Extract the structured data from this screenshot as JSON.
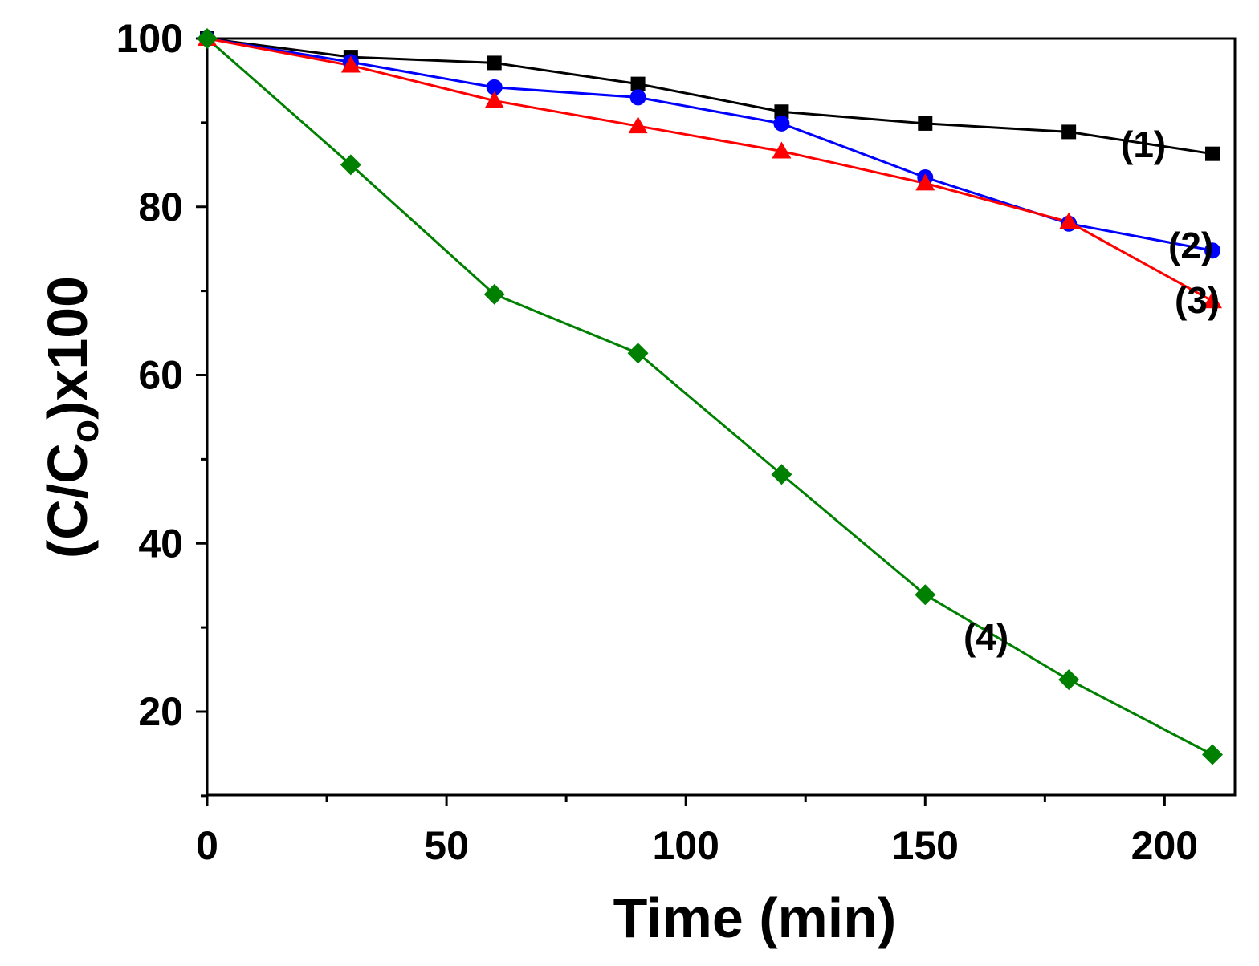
{
  "chart_data": {
    "type": "line",
    "title": "",
    "xlabel": "Time (min)",
    "ylabel": "(C/C",
    "ylabel_subscript": "o",
    "ylabel_suffix": ")x100",
    "xlim": [
      0,
      215
    ],
    "ylim": [
      10,
      100
    ],
    "xticks": [
      0,
      50,
      100,
      150,
      200
    ],
    "xtick_labels": [
      "0",
      "50",
      "100",
      "150",
      "200"
    ],
    "yticks": [
      20,
      40,
      60,
      80,
      100
    ],
    "ytick_labels": [
      "20",
      "40",
      "60",
      "80",
      "100"
    ],
    "grid": false,
    "x": [
      0,
      30,
      60,
      90,
      120,
      150,
      180,
      210
    ],
    "series": [
      {
        "name": "(1)",
        "label": "(1)",
        "color": "#000000",
        "marker": "square",
        "values": [
          100,
          97.8,
          97.1,
          94.6,
          91.3,
          89.9,
          88.9,
          86.3
        ]
      },
      {
        "name": "(2)",
        "label": "(2)",
        "color": "#0000ff",
        "marker": "circle",
        "values": [
          100,
          97.2,
          94.2,
          93.0,
          89.9,
          83.5,
          78.0,
          74.8
        ]
      },
      {
        "name": "(3)",
        "label": "(3)",
        "color": "#ff0000",
        "marker": "triangle",
        "values": [
          100,
          96.8,
          92.6,
          89.6,
          86.6,
          82.8,
          78.2,
          68.8
        ]
      },
      {
        "name": "(4)",
        "label": "(4)",
        "color": "#008000",
        "marker": "diamond",
        "values": [
          100,
          85.0,
          69.6,
          62.6,
          48.2,
          33.9,
          23.8,
          14.9
        ]
      }
    ]
  }
}
